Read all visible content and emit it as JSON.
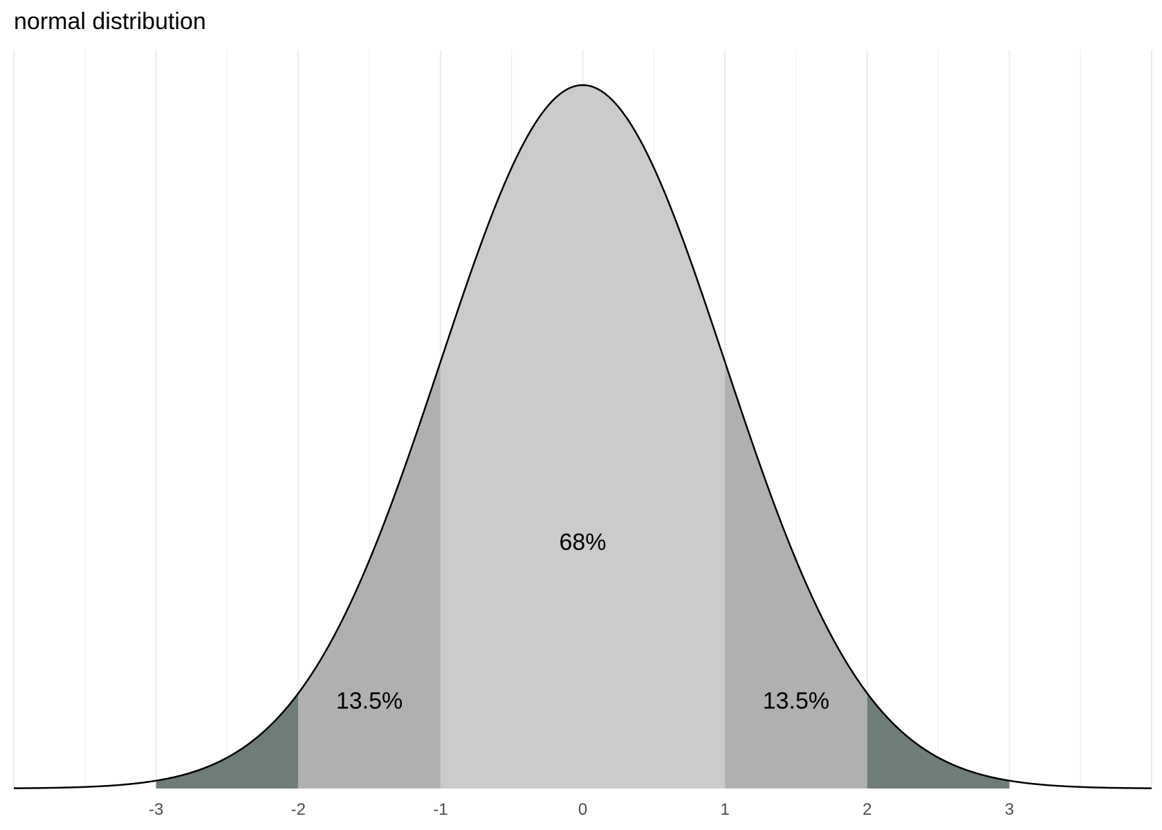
{
  "chart_data": {
    "type": "area",
    "title": "normal distribution",
    "xlabel": "",
    "ylabel": "",
    "xlim": [
      -4,
      4
    ],
    "ylim": [
      0,
      0.4
    ],
    "grid": true,
    "distribution": {
      "mean": 0,
      "sd": 1
    },
    "x_ticks": [
      -3,
      -2,
      -1,
      0,
      1,
      2,
      3
    ],
    "x_tick_labels": [
      "-3",
      "-2",
      "-1",
      "0",
      "1",
      "2",
      "3"
    ],
    "regions": [
      {
        "from": -3,
        "to": -2,
        "color": "#6e7d7a"
      },
      {
        "from": -2,
        "to": -1,
        "color": "#b0b0b0"
      },
      {
        "from": -1,
        "to": 1,
        "color": "#cbcbcb"
      },
      {
        "from": 1,
        "to": 2,
        "color": "#b0b0b0"
      },
      {
        "from": 2,
        "to": 3,
        "color": "#6e7d7a"
      }
    ],
    "annotations": [
      {
        "text": "68%",
        "x": 0,
        "y": 0.14
      },
      {
        "text": "13.5%",
        "x": -1.5,
        "y": 0.05
      },
      {
        "text": "13.5%",
        "x": 1.5,
        "y": 0.05
      }
    ],
    "curve_color": "#000000",
    "grid_color": "#ebebeb"
  }
}
